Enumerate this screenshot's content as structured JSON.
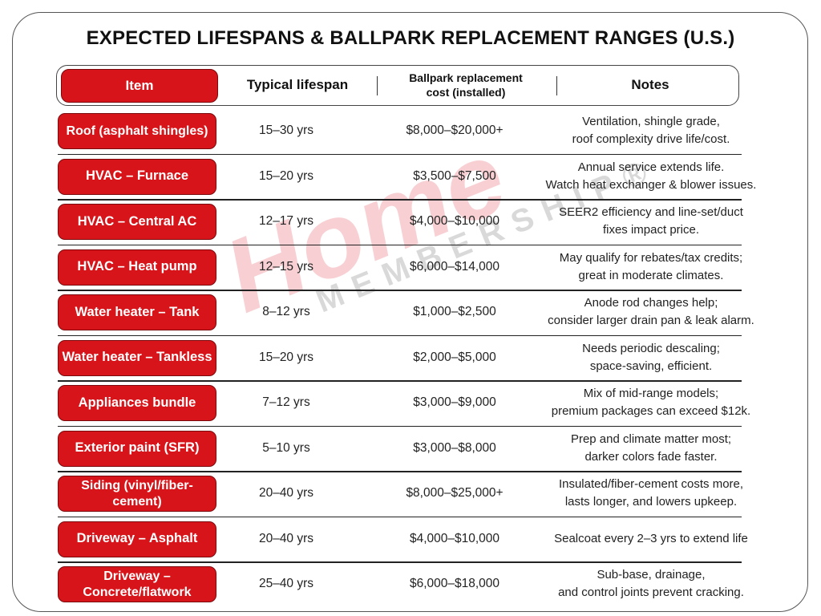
{
  "title": "EXPECTED LIFESPANS & BALLPARK REPLACEMENT RANGES (U.S.)",
  "accent_color": "#d7141a",
  "watermark": {
    "line1": "Home",
    "line2": "MEMBERSHIP®"
  },
  "columns": {
    "item": "Item",
    "lifespan": "Typical lifespan",
    "cost_line1": "Ballpark replacement",
    "cost_line2": "cost (installed)",
    "notes": "Notes"
  },
  "rows": [
    {
      "item": "Roof (asphalt shingles)",
      "lifespan": "15–30 yrs",
      "cost": "$8,000–$20,000+",
      "notes1": "Ventilation, shingle grade,",
      "notes2": "roof complexity drive life/cost."
    },
    {
      "item": "HVAC – Furnace",
      "lifespan": "15–20 yrs",
      "cost": "$3,500–$7,500",
      "notes1": "Annual service extends life.",
      "notes2": "Watch heat exchanger & blower issues."
    },
    {
      "item": "HVAC – Central AC",
      "lifespan": "12–17 yrs",
      "cost": "$4,000–$10,000",
      "notes1": "SEER2 efficiency and line-set/duct",
      "notes2": "fixes impact price."
    },
    {
      "item": "HVAC – Heat pump",
      "lifespan": "12–15 yrs",
      "cost": "$6,000–$14,000",
      "notes1": "May qualify for rebates/tax credits;",
      "notes2": "great in moderate climates."
    },
    {
      "item": "Water heater – Tank",
      "lifespan": "8–12 yrs",
      "cost": "$1,000–$2,500",
      "notes1": "Anode rod changes help;",
      "notes2": "consider larger drain pan & leak alarm."
    },
    {
      "item": "Water heater – Tankless",
      "lifespan": "15–20 yrs",
      "cost": "$2,000–$5,000",
      "notes1": "Needs periodic descaling;",
      "notes2": "space-saving, efficient."
    },
    {
      "item": "Appliances bundle",
      "lifespan": "7–12 yrs",
      "cost": "$3,000–$9,000",
      "notes1": "Mix of mid-range models;",
      "notes2": "premium packages can exceed $12k."
    },
    {
      "item": "Exterior paint (SFR)",
      "lifespan": "5–10 yrs",
      "cost": "$3,000–$8,000",
      "notes1": "Prep and climate matter most;",
      "notes2": "darker colors fade faster."
    },
    {
      "item": "Siding (vinyl/fiber-cement)",
      "lifespan": "20–40 yrs",
      "cost": "$8,000–$25,000+",
      "notes1": "Insulated/fiber-cement costs more,",
      "notes2": "lasts longer, and lowers upkeep."
    },
    {
      "item": "Driveway – Asphalt",
      "lifespan": "20–40 yrs",
      "cost": "$4,000–$10,000",
      "notes1": "Sealcoat every 2–3 yrs to extend life",
      "notes2": ""
    },
    {
      "item": "Driveway – Concrete/flatwork",
      "lifespan": "25–40 yrs",
      "cost": "$6,000–$18,000",
      "notes1": "Sub-base, drainage,",
      "notes2": "and control joints prevent cracking."
    }
  ]
}
